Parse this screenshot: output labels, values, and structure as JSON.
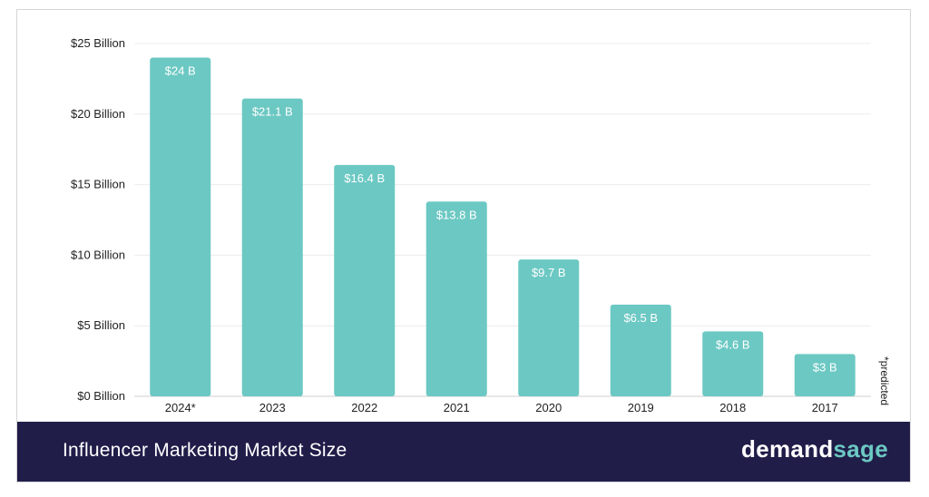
{
  "chart_data": {
    "type": "bar",
    "categories": [
      "2024*",
      "2023",
      "2022",
      "2021",
      "2020",
      "2019",
      "2018",
      "2017"
    ],
    "values": [
      24,
      21.1,
      16.4,
      13.8,
      9.7,
      6.5,
      4.6,
      3
    ],
    "data_labels": [
      "$24 B",
      "$21.1 B",
      "$16.4 B",
      "$13.8 B",
      "$9.7 B",
      "$6.5 B",
      "$4.6 B",
      "$3 B"
    ],
    "yticks": [
      0,
      5,
      10,
      15,
      20,
      25
    ],
    "ytick_labels": [
      "$0 Billion",
      "$5 Billion",
      "$10 Billion",
      "$15 Billion",
      "$20 Billion",
      "$25 Billion"
    ],
    "ylim": [
      0,
      25
    ],
    "grid": true,
    "bar_color": "#6cc8c3",
    "annotation": "*predicted"
  },
  "footer": {
    "title": "Influencer Marketing Market Size",
    "brand_part1": "demand",
    "brand_part2": "sage",
    "background": "#201d49",
    "brand_accent": "#6cc8c3"
  }
}
